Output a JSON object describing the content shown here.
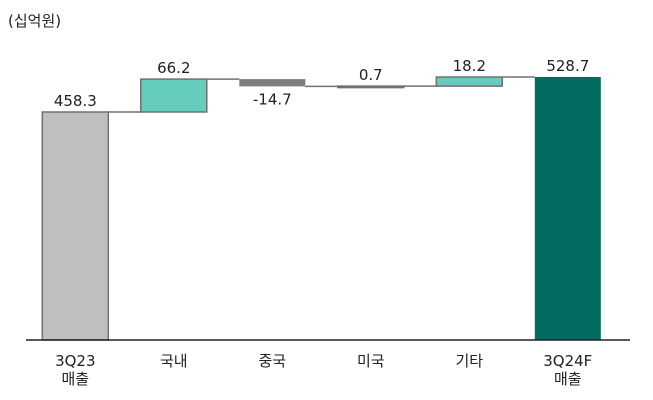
{
  "unit_label": "(십억원)",
  "chart_data": {
    "type": "bar",
    "subtype": "waterfall",
    "title": "",
    "unit": "(십억원)",
    "categories": [
      [
        "3Q23",
        "매출"
      ],
      [
        "국내"
      ],
      [
        "중국"
      ],
      [
        "미국"
      ],
      [
        "기타"
      ],
      [
        "3Q24F",
        "매출"
      ]
    ],
    "steps": [
      {
        "kind": "total",
        "value": 458.3,
        "label": "458.3"
      },
      {
        "kind": "delta",
        "value": 66.2,
        "label": "66.2"
      },
      {
        "kind": "delta",
        "value": -14.7,
        "label": "-14.7"
      },
      {
        "kind": "delta",
        "value": 0.7,
        "label": "0.7"
      },
      {
        "kind": "delta",
        "value": 18.2,
        "label": "18.2"
      },
      {
        "kind": "total",
        "value": 528.7,
        "label": "528.7"
      }
    ],
    "ylim": [
      0,
      528.7
    ],
    "grid": false,
    "colors": {
      "start_total": "#bfbfbf",
      "increase": "#66ccbb",
      "decrease": "#7f7f7f",
      "end_total": "#006b5e",
      "outline": "#707070",
      "connector": "#707070",
      "axis": "#222222"
    }
  }
}
